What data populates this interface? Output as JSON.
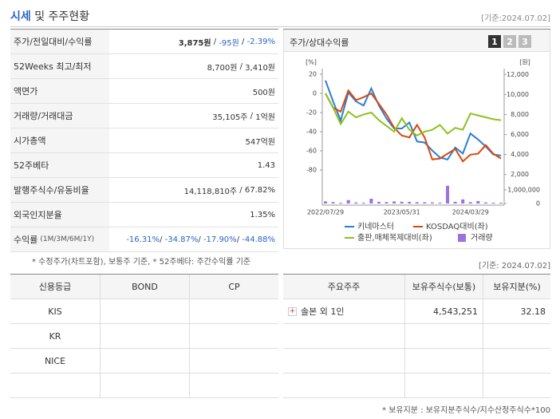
{
  "header": {
    "title_highlight": "시세",
    "title_rest": "및 주주현황",
    "date": "[기준:2024.07.02]"
  },
  "summary": {
    "rows": [
      {
        "label": "주가/전일대비/수익률",
        "values": [
          "3,875원",
          "-95원",
          "-2.39%"
        ],
        "separator": " / "
      },
      {
        "label": "52Weeks 최고/최저",
        "values": [
          "8,700원",
          "3,410원"
        ],
        "separator": " / "
      },
      {
        "label": "액면가",
        "values": [
          "500원"
        ]
      },
      {
        "label": "거래량/거래대금",
        "values": [
          "35,105주",
          "1억원"
        ],
        "separator": " / "
      },
      {
        "label": "시가총액",
        "values": [
          "547억원"
        ]
      },
      {
        "label": "52주베타",
        "values": [
          "1.43"
        ]
      },
      {
        "label": "발행주식수/유동비율",
        "values": [
          "14,118,810주",
          "67.82%"
        ],
        "separator": " / "
      },
      {
        "label": "외국인지분율",
        "values": [
          "1.35%"
        ]
      },
      {
        "label": "수익률",
        "sublabel": "(1M/3M/6M/1Y)",
        "values": [
          "-16.31%",
          "-34.87%",
          "-17.90%",
          "-44.88%"
        ],
        "separator": "/ "
      }
    ],
    "note": "* 수정주가(차트포함), 보통주 기준, * 52주베타: 주간수익률 기준"
  },
  "chart_tabs": [
    "1",
    "2",
    "3"
  ],
  "chart_data": {
    "type": "line",
    "title": "주가/상대수익률",
    "y_label": "[%]",
    "y2_label": "[원]",
    "categories": [
      "2022/07/29",
      null,
      null,
      null,
      null,
      null,
      null,
      null,
      null,
      null,
      "2023/05/31",
      null,
      null,
      null,
      null,
      null,
      null,
      null,
      null,
      "2024/03/29",
      null,
      null,
      null,
      null
    ],
    "ylim": [
      -90,
      25
    ],
    "yticks": [
      20,
      0,
      -20,
      -40,
      -60,
      -80
    ],
    "y2lim": [
      1500,
      12500
    ],
    "y2ticks": [
      {
        "value": 12000,
        "label": "12,000"
      },
      {
        "value": 10000,
        "label": "10,000"
      },
      {
        "value": 8000,
        "label": "8,000"
      },
      {
        "value": 6000,
        "label": "6,000"
      },
      {
        "value": 4000,
        "label": "4,000"
      },
      {
        "value": 2000,
        "label": "2,000"
      }
    ],
    "y3lim": [
      0,
      1400000
    ],
    "y3ticks": [
      {
        "value": 1000000,
        "label": "1,000,000"
      },
      0
    ],
    "series": [
      {
        "name": "키네마스터",
        "color": "#2a7fd4",
        "axis": "y2",
        "values": [
          11400,
          9300,
          7400,
          10200,
          9300,
          8900,
          10600,
          8900,
          7600,
          6600,
          6600,
          7200,
          5300,
          5200,
          4400,
          3700,
          3500,
          4700,
          4100,
          6100,
          5500,
          4800,
          4000,
          3900
        ]
      },
      {
        "name": "KOSDAQ대비(좌)",
        "color": "#d9480f",
        "values": [
          0,
          -15,
          -19,
          3,
          -7,
          -4,
          0,
          -11,
          -22,
          -36,
          -44,
          -46,
          -33,
          -46,
          -69,
          -68,
          -63,
          -58,
          -71,
          -64,
          -63,
          -54,
          -63,
          -68
        ]
      },
      {
        "name": "출판,매체복제대비(좌)",
        "color": "#8dc21f",
        "values": [
          0,
          -15,
          -32,
          -19,
          -25,
          -22,
          -20,
          -28,
          -34,
          -40,
          -26,
          -38,
          -44,
          -40,
          -38,
          -33,
          -42,
          -36,
          -38,
          -21,
          -23,
          -25,
          -27,
          -28
        ]
      },
      {
        "name": "거래량",
        "color": "#9b72de",
        "axis": "y3",
        "type": "bar",
        "values": [
          150000,
          100000,
          60000,
          250000,
          80000,
          60000,
          350000,
          120000,
          100000,
          150000,
          130000,
          120000,
          100000,
          90000,
          80000,
          60000,
          1300000,
          120000,
          300000,
          100000,
          180000,
          80000,
          60000,
          60000
        ]
      }
    ]
  },
  "credit": {
    "headers": [
      "신용등급",
      "BOND",
      "CP"
    ],
    "rows": [
      [
        "KIS"
      ],
      [
        "KR"
      ],
      [
        "NICE"
      ]
    ]
  },
  "holders": {
    "date": "[기준: 2024.07.02]",
    "headers": [
      "주요주주",
      "보유주식수(보통)",
      "보유지분(%)"
    ],
    "rows": [
      [
        "솔본 외 1인",
        "4,543,251",
        "32.18"
      ]
    ],
    "note": "* 보유지분 : 보유지분주식수/지수산정주식수*100"
  }
}
